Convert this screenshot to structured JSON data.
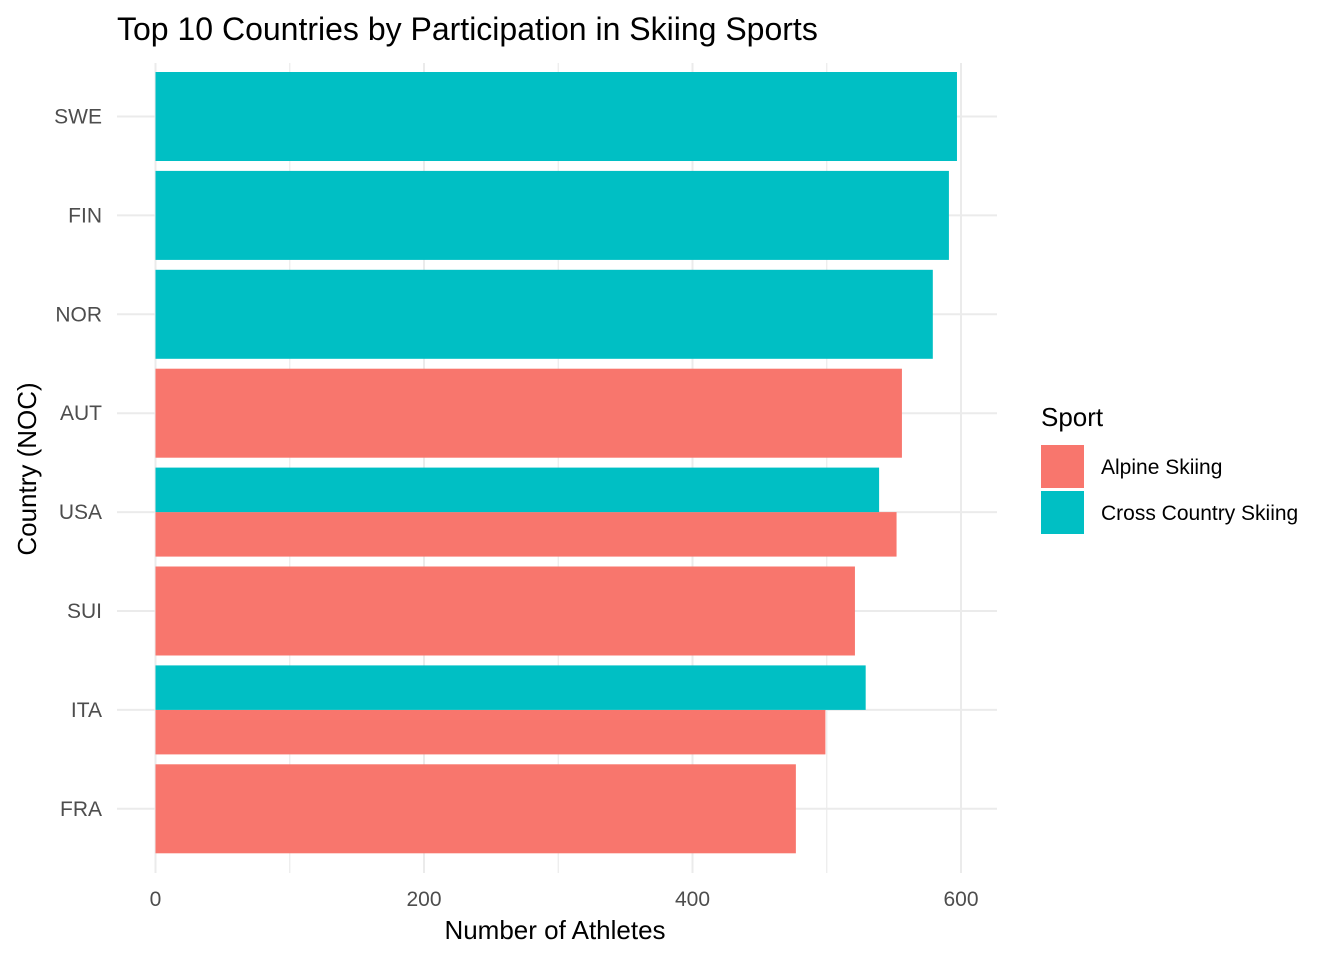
{
  "chart_data": {
    "type": "bar",
    "orientation": "horizontal",
    "stacking": "overlaid",
    "title": "Top 10 Countries by Participation in Skiing Sports",
    "xlabel": "Number of Athletes",
    "ylabel": "Country (NOC)",
    "categories": [
      "SWE",
      "FIN",
      "NOR",
      "AUT",
      "USA",
      "SUI",
      "ITA",
      "FRA"
    ],
    "xlim": [
      0,
      620
    ],
    "x_ticks": [
      0,
      200,
      400,
      600
    ],
    "grid": true,
    "legend": {
      "title": "Sport",
      "placement": "right"
    },
    "series": [
      {
        "name": "Alpine Skiing",
        "color": "#F8766D",
        "points": [
          {
            "category": "AUT",
            "value": 556
          },
          {
            "category": "USA",
            "value": 552
          },
          {
            "category": "SUI",
            "value": 521
          },
          {
            "category": "ITA",
            "value": 499
          },
          {
            "category": "FRA",
            "value": 477
          }
        ]
      },
      {
        "name": "Cross Country Skiing",
        "color": "#00BFC4",
        "points": [
          {
            "category": "SWE",
            "value": 597
          },
          {
            "category": "FIN",
            "value": 591
          },
          {
            "category": "NOR",
            "value": 579
          },
          {
            "category": "USA",
            "value": 539
          },
          {
            "category": "ITA",
            "value": 529
          }
        ]
      }
    ]
  }
}
